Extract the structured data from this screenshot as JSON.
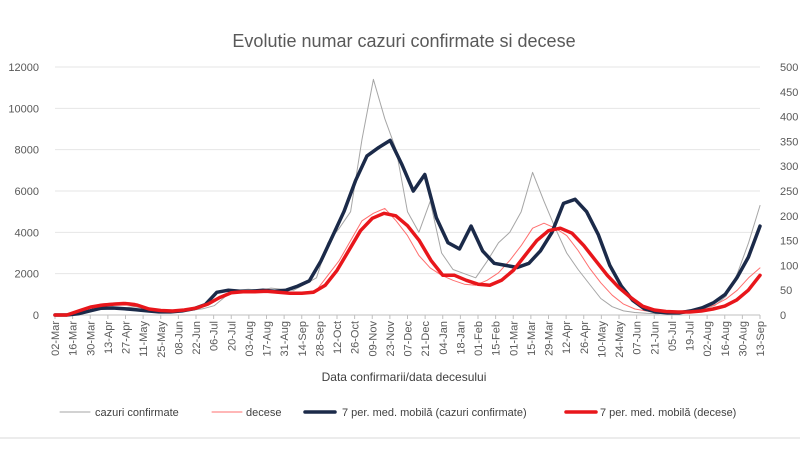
{
  "chart_data": {
    "type": "line",
    "title": "Evolutie numar cazuri confirmate si decese",
    "xlabel": "Data confirmarii/data decesului",
    "ylabel": "",
    "grid": true,
    "legend_position": "bottom",
    "x_ticks": [
      "02-Mar",
      "16-Mar",
      "30-Mar",
      "13-Apr",
      "27-Apr",
      "11-May",
      "25-May",
      "08-Jun",
      "22-Jun",
      "06-Jul",
      "20-Jul",
      "03-Aug",
      "17-Aug",
      "31-Aug",
      "14-Sep",
      "28-Sep",
      "12-Oct",
      "26-Oct",
      "09-Nov",
      "23-Nov",
      "07-Dec",
      "21-Dec",
      "04-Jan",
      "18-Jan",
      "01-Feb",
      "15-Feb",
      "01-Mar",
      "15-Mar",
      "29-Mar",
      "12-Apr",
      "26-Apr",
      "10-May",
      "24-May",
      "07-Jun",
      "21-Jun",
      "05-Jul",
      "19-Jul",
      "02-Aug",
      "16-Aug",
      "30-Aug",
      "13-Sep"
    ],
    "y_left": {
      "ylim": [
        0,
        12000
      ],
      "ticks": [
        "0",
        "2000",
        "4000",
        "6000",
        "8000",
        "10000",
        "12000"
      ]
    },
    "y_right": {
      "ylim": [
        0,
        500
      ],
      "ticks": [
        "0",
        "50",
        "100",
        "150",
        "200",
        "250",
        "300",
        "350",
        "400",
        "450",
        "500"
      ]
    },
    "series": [
      {
        "name": "cazuri confirmate",
        "axis": "left",
        "color": "#a6a6a6",
        "style": "thin",
        "values": [
          0,
          0,
          60,
          150,
          300,
          380,
          350,
          400,
          300,
          250,
          200,
          180,
          230,
          300,
          450,
          900,
          1200,
          1250,
          1200,
          1300,
          1250,
          1200,
          1500,
          1800,
          3500,
          4200,
          5000,
          8500,
          11400,
          9500,
          8000,
          5000,
          4000,
          5500,
          3000,
          2200,
          2000,
          1800,
          2600,
          3500,
          4000,
          5000,
          6900,
          5500,
          4200,
          3000,
          2200,
          1500,
          800,
          400,
          200,
          120,
          80,
          60,
          100,
          150,
          200,
          300,
          450,
          900,
          2000,
          3500,
          5300
        ]
      },
      {
        "name": "decese",
        "axis": "right",
        "color": "#ff6f6f",
        "style": "thin",
        "values": [
          0,
          0,
          5,
          15,
          22,
          24,
          26,
          24,
          14,
          10,
          8,
          9,
          11,
          18,
          28,
          42,
          48,
          48,
          50,
          48,
          46,
          44,
          46,
          50,
          80,
          110,
          150,
          190,
          205,
          215,
          190,
          160,
          120,
          95,
          80,
          70,
          62,
          60,
          70,
          85,
          110,
          140,
          175,
          185,
          175,
          160,
          130,
          95,
          65,
          40,
          22,
          12,
          8,
          6,
          6,
          8,
          10,
          14,
          20,
          32,
          50,
          75,
          95
        ]
      },
      {
        "name": "7 per. med. mobilă (cazuri confirmate)",
        "axis": "left",
        "color": "#1b2a49",
        "style": "thick",
        "values": [
          0,
          0,
          60,
          200,
          330,
          340,
          300,
          250,
          200,
          150,
          150,
          200,
          300,
          500,
          1100,
          1200,
          1150,
          1150,
          1200,
          1150,
          1200,
          1400,
          1650,
          2600,
          3800,
          5000,
          6500,
          7700,
          8100,
          8450,
          7300,
          6000,
          6800,
          4700,
          3500,
          3200,
          4300,
          3100,
          2500,
          2400,
          2300,
          2500,
          3100,
          4000,
          5400,
          5600,
          5000,
          3900,
          2400,
          1400,
          700,
          300,
          150,
          100,
          100,
          200,
          350,
          600,
          1000,
          1800,
          2800,
          4300
        ]
      },
      {
        "name": "7 per. med. mobilă (decese)",
        "axis": "right",
        "color": "#e8161b",
        "style": "thick",
        "values": [
          0,
          0,
          8,
          16,
          20,
          22,
          23,
          20,
          12,
          9,
          8,
          10,
          14,
          22,
          35,
          45,
          47,
          47,
          48,
          46,
          44,
          44,
          46,
          60,
          90,
          130,
          170,
          195,
          205,
          200,
          180,
          150,
          110,
          80,
          80,
          70,
          62,
          60,
          70,
          90,
          120,
          150,
          170,
          175,
          165,
          140,
          110,
          80,
          55,
          35,
          18,
          10,
          7,
          6,
          6,
          8,
          12,
          18,
          30,
          50,
          80
        ]
      }
    ]
  }
}
